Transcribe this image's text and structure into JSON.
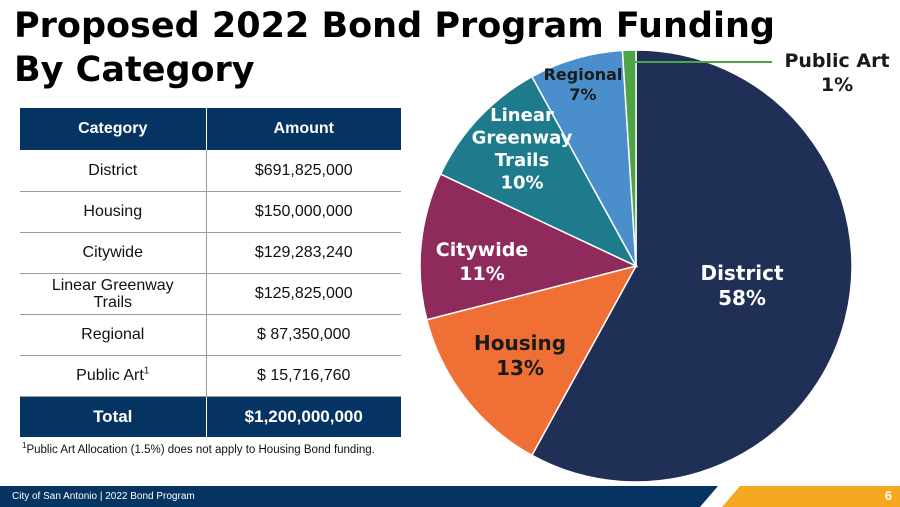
{
  "title_line1": "Proposed 2022 Bond Program Funding",
  "title_line2": "By Category",
  "table": {
    "headers": [
      "Category",
      "Amount"
    ],
    "rows": [
      {
        "category": "District",
        "amount": "$691,825,000"
      },
      {
        "category": "Housing",
        "amount": "$150,000,000"
      },
      {
        "category": "Citywide",
        "amount": "$129,283,240"
      },
      {
        "category": "Linear Greenway Trails",
        "amount": "$125,825,000"
      },
      {
        "category": "Regional",
        "amount": "$ 87,350,000"
      },
      {
        "category": "Public Art",
        "amount": "$ 15,716,760"
      }
    ],
    "total_label": "Total",
    "total_amount": "$1,200,000,000",
    "footnote_marker": "1"
  },
  "footnote": "Public Art Allocation (1.5%) does not apply to Housing Bond funding.",
  "footer": {
    "text": "City of San Antonio | 2022 Bond Program",
    "page": "6"
  },
  "colors": {
    "navy": "#063462",
    "accent": "#F7A823"
  },
  "chart_data": {
    "type": "pie",
    "unit": "%",
    "slices": [
      {
        "label": "District",
        "value": 58,
        "color": "#1F2F55"
      },
      {
        "label": "Housing",
        "value": 13,
        "color": "#EF6F35"
      },
      {
        "label": "Citywide",
        "value": 11,
        "color": "#8F2A5C"
      },
      {
        "label": "Linear Greenway Trails",
        "value": 10,
        "color": "#1D7B8C"
      },
      {
        "label": "Regional",
        "value": 7,
        "color": "#4A8FCB"
      },
      {
        "label": "Public Art",
        "value": 1,
        "color": "#4DA546"
      }
    ]
  }
}
